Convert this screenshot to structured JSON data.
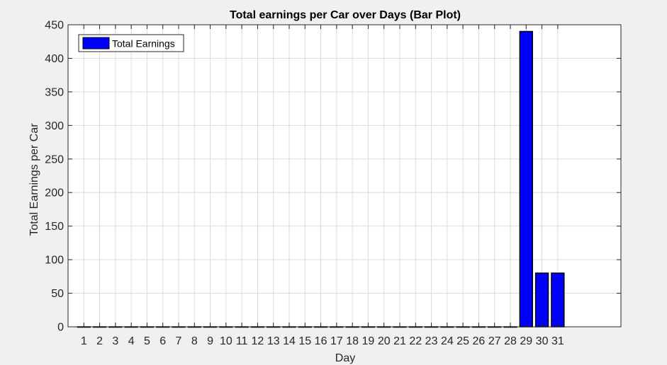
{
  "chart_data": {
    "type": "bar",
    "title": "Total earnings per Car over Days (Bar Plot)",
    "xlabel": "Day",
    "ylabel": "Total Earnings per Car",
    "categories": [
      "1",
      "2",
      "3",
      "4",
      "5",
      "6",
      "7",
      "8",
      "9",
      "10",
      "11",
      "12",
      "13",
      "14",
      "15",
      "16",
      "17",
      "18",
      "19",
      "20",
      "21",
      "22",
      "23",
      "24",
      "25",
      "26",
      "27",
      "28",
      "29",
      "30",
      "31"
    ],
    "series": [
      {
        "name": "Total Earnings",
        "values": [
          0,
          0,
          0,
          0,
          0,
          0,
          0,
          0,
          0,
          0,
          0,
          0,
          0,
          0,
          0,
          0,
          0,
          0,
          0,
          0,
          0,
          0,
          0,
          0,
          0,
          0,
          0,
          0,
          440,
          80,
          80
        ]
      }
    ],
    "xlim": [
      0,
      35
    ],
    "ylim": [
      0,
      450
    ],
    "yticks": [
      0,
      50,
      100,
      150,
      200,
      250,
      300,
      350,
      400,
      450
    ],
    "grid": true,
    "legend_placement": "top-left",
    "colors": {
      "bar_fill": "#0000ff",
      "bar_edge": "#000000",
      "plot_background": "#ffffff",
      "figure_background": "#f0f0f0",
      "grid": "#dcdcdc",
      "text": "#262626"
    }
  }
}
